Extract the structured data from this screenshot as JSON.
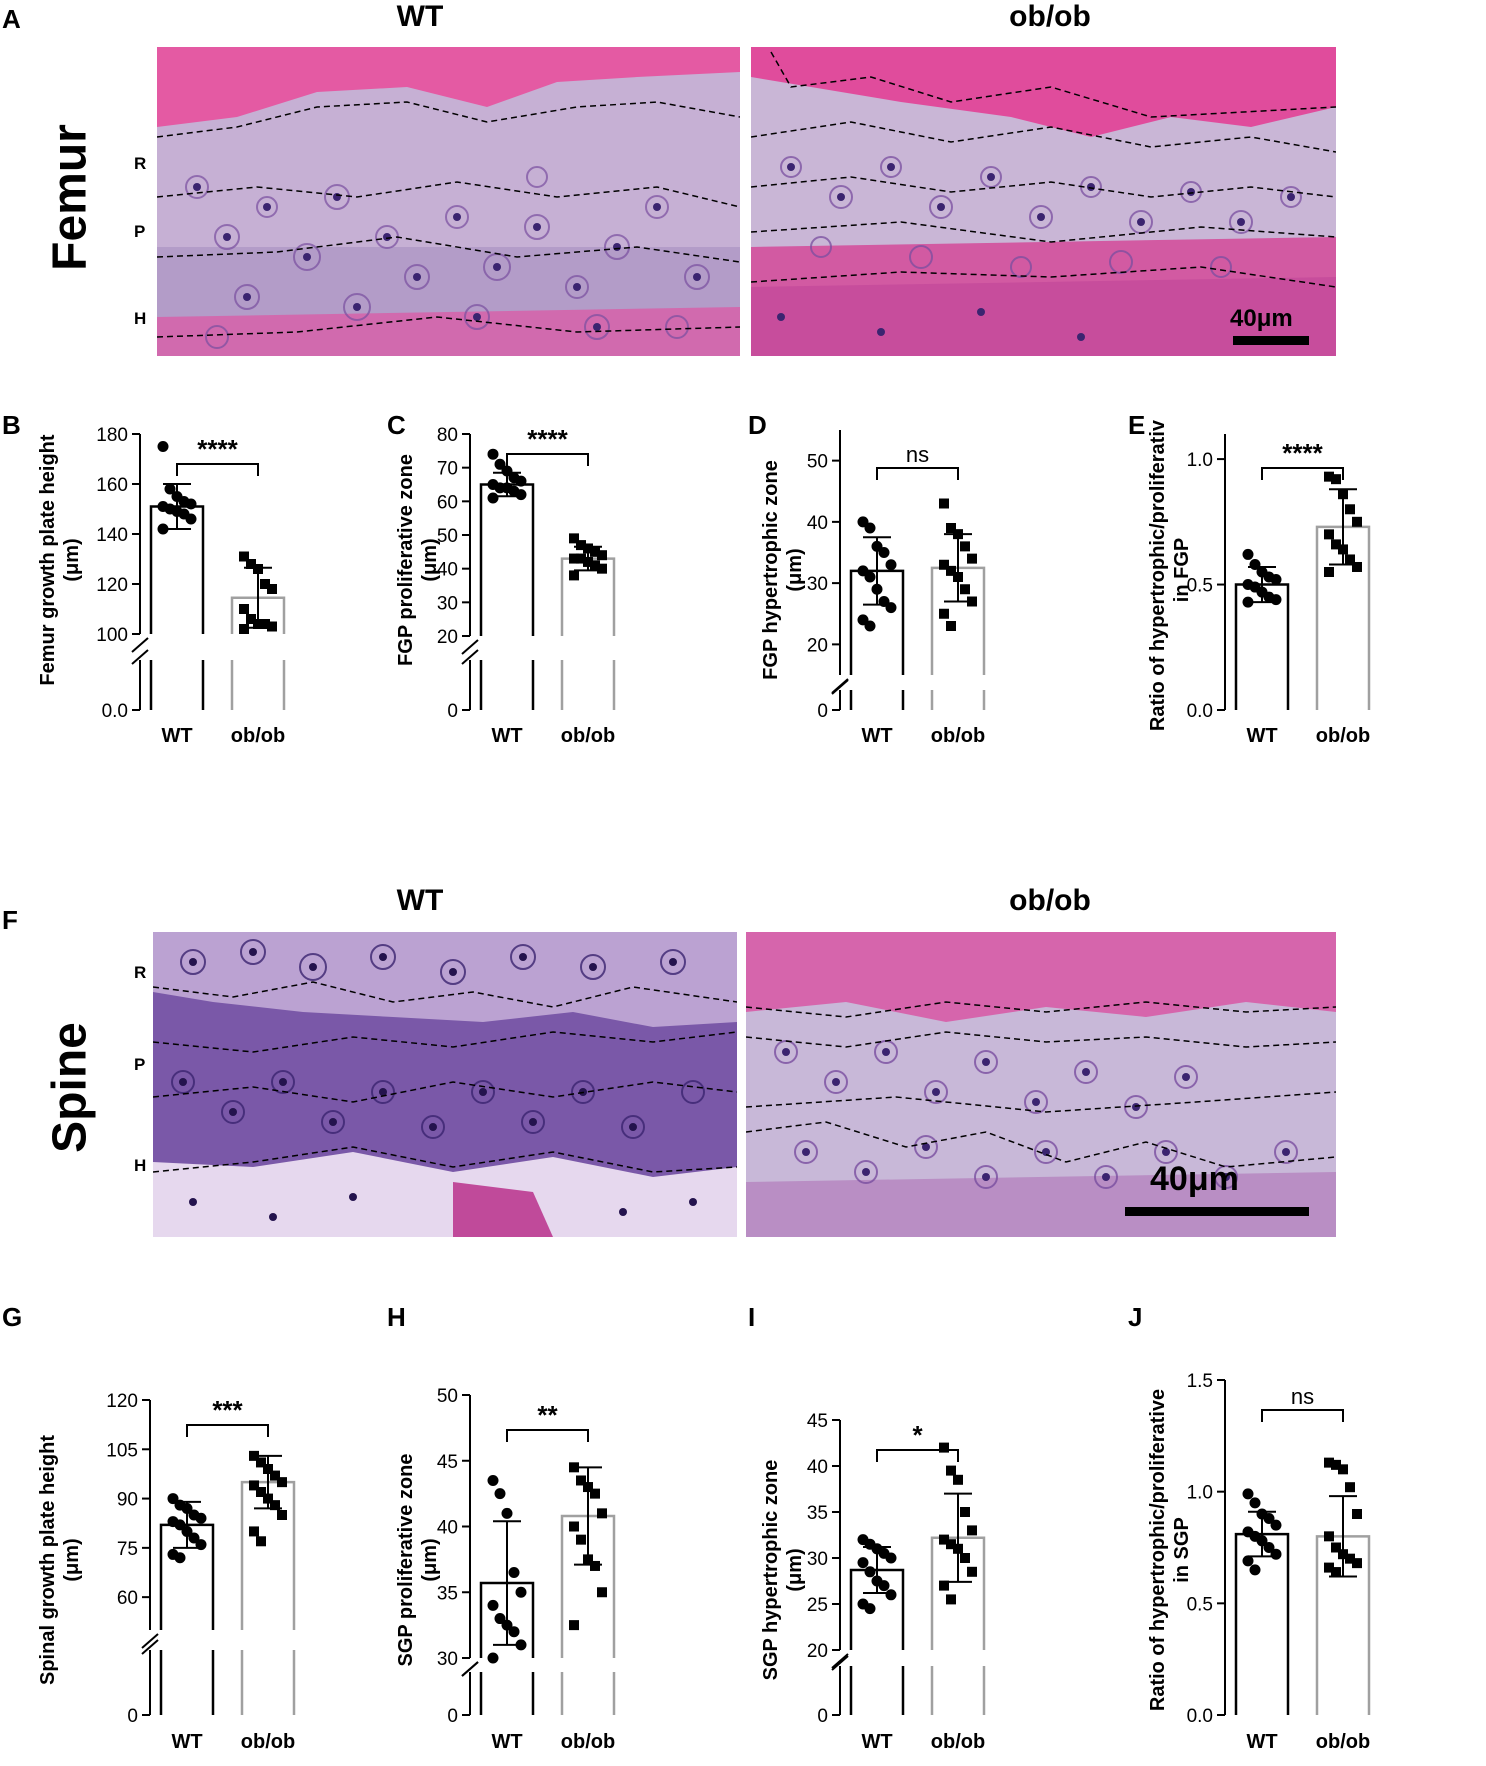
{
  "panel_letters": [
    "A",
    "B",
    "C",
    "D",
    "E",
    "F",
    "G",
    "H",
    "I",
    "J"
  ],
  "panel_a": {
    "col_titles": [
      "WT",
      "ob/ob"
    ],
    "row_title": "Femur",
    "zones": [
      "R",
      "P",
      "H"
    ],
    "scale_label": "40μm"
  },
  "panel_f": {
    "col_titles": [
      "WT",
      "ob/ob"
    ],
    "row_title": "Spine",
    "zones": [
      "R",
      "P",
      "H"
    ],
    "scale_label": "40μm"
  },
  "colors": {
    "tissue_pink": "#e0489a",
    "cartilage_lilac": "#c9b3d6",
    "cartilage_dark": "#8a64b0",
    "nucleus": "#3b2470",
    "wt_bar": "#000000",
    "obob_bar": "#a0a0a0"
  },
  "chart_data": [
    {
      "id": "B",
      "type": "bar",
      "ylabel": "Femur growth plate height\n(μm)",
      "categories": [
        "WT",
        "ob/ob"
      ],
      "values": [
        151,
        114.5
      ],
      "errors": [
        9,
        12
      ],
      "ylim": [
        0,
        180
      ],
      "break": [
        100,
        180
      ],
      "ticks_upper": [
        "100",
        "120",
        "140",
        "160",
        "180"
      ],
      "ticks_lower": [
        "0.0"
      ],
      "tick_values_upper": [
        100,
        120,
        140,
        160,
        180
      ],
      "significance": "****",
      "points": [
        [
          175,
          158,
          155,
          153,
          152,
          151,
          150,
          149,
          148,
          146,
          142
        ],
        [
          131,
          128,
          126,
          120,
          118,
          110,
          106,
          104,
          104,
          103,
          102
        ]
      ]
    },
    {
      "id": "C",
      "type": "bar",
      "ylabel": "FGP proliferative zone\n(μm)",
      "categories": [
        "WT",
        "ob/ob"
      ],
      "values": [
        65,
        43
      ],
      "errors": [
        3.5,
        3.5
      ],
      "ylim": [
        0,
        80
      ],
      "break": [
        20,
        80
      ],
      "ticks_upper": [
        "20",
        "30",
        "40",
        "50",
        "60",
        "70",
        "80"
      ],
      "ticks_lower": [
        "0"
      ],
      "tick_values_upper": [
        20,
        30,
        40,
        50,
        60,
        70,
        80
      ],
      "significance": "****",
      "points": [
        [
          74,
          71,
          69,
          67,
          66,
          65,
          64,
          64,
          63,
          62,
          61
        ],
        [
          49,
          47,
          46,
          45,
          44,
          43,
          43,
          42,
          41,
          40,
          38
        ]
      ]
    },
    {
      "id": "D",
      "type": "bar",
      "ylabel": "FGP hypertrophic zone\n(μm)",
      "categories": [
        "WT",
        "ob/ob"
      ],
      "values": [
        32,
        32.5
      ],
      "errors": [
        5.5,
        5.5
      ],
      "ylim": [
        0,
        55
      ],
      "break": [
        15,
        55
      ],
      "ticks_upper": [
        "20",
        "30",
        "40",
        "50"
      ],
      "ticks_lower": [
        "0"
      ],
      "tick_values_upper": [
        20,
        30,
        40,
        50
      ],
      "significance": "ns",
      "points": [
        [
          40,
          39,
          36,
          35,
          33,
          32,
          31,
          29,
          27,
          26,
          24,
          23
        ],
        [
          43,
          39,
          38,
          36,
          34,
          33,
          32,
          31,
          29,
          27,
          25,
          23
        ]
      ]
    },
    {
      "id": "E",
      "type": "bar",
      "ylabel": "Ratio of hypertrophic/proliferative\nin FGP",
      "categories": [
        "WT",
        "ob/ob"
      ],
      "values": [
        0.5,
        0.73
      ],
      "errors": [
        0.07,
        0.15
      ],
      "ylim": [
        0,
        1.1
      ],
      "ticks": [
        "0.0",
        "0.5",
        "1.0"
      ],
      "tick_values": [
        0,
        0.5,
        1.0
      ],
      "significance": "****",
      "points": [
        [
          0.62,
          0.58,
          0.55,
          0.53,
          0.52,
          0.5,
          0.49,
          0.47,
          0.45,
          0.44,
          0.43
        ],
        [
          0.93,
          0.92,
          0.86,
          0.8,
          0.75,
          0.7,
          0.66,
          0.64,
          0.6,
          0.57,
          0.55
        ]
      ]
    },
    {
      "id": "G",
      "type": "bar",
      "ylabel": "Spinal growth plate height\n(μm)",
      "categories": [
        "WT",
        "ob/ob"
      ],
      "values": [
        82,
        95
      ],
      "errors": [
        7,
        8
      ],
      "ylim": [
        0,
        120
      ],
      "break": [
        50,
        120
      ],
      "ticks_upper": [
        "60",
        "75",
        "90",
        "105",
        "120"
      ],
      "ticks_lower": [
        "0"
      ],
      "tick_values_upper": [
        60,
        75,
        90,
        105,
        120
      ],
      "significance": "***",
      "points": [
        [
          90,
          88,
          87,
          85,
          84,
          83,
          82,
          80,
          78,
          76,
          73,
          72
        ],
        [
          103,
          101,
          99,
          97,
          95,
          94,
          92,
          90,
          88,
          85,
          80,
          77
        ]
      ]
    },
    {
      "id": "H",
      "type": "bar",
      "ylabel": "SGP proliferative zone\n(μm)",
      "categories": [
        "WT",
        "ob/ob"
      ],
      "values": [
        35.7,
        40.8
      ],
      "errors": [
        4.7,
        3.7
      ],
      "ylim": [
        0,
        50
      ],
      "break": [
        30,
        50
      ],
      "ticks_upper": [
        "30",
        "35",
        "40",
        "45",
        "50"
      ],
      "ticks_lower": [
        "0"
      ],
      "tick_values_upper": [
        30,
        35,
        40,
        45,
        50
      ],
      "significance": "**",
      "points": [
        [
          43.5,
          42.5,
          41,
          36.5,
          35,
          34,
          33,
          32.5,
          32,
          31,
          30
        ],
        [
          44.5,
          43.5,
          43,
          42.5,
          41,
          40,
          39,
          37.5,
          37,
          35,
          32.5
        ]
      ]
    },
    {
      "id": "I",
      "type": "bar",
      "ylabel": "SGP hypertrophic zone\n(μm)",
      "categories": [
        "WT",
        "ob/ob"
      ],
      "values": [
        28.7,
        32.2
      ],
      "errors": [
        2.5,
        4.8
      ],
      "ylim": [
        0,
        45
      ],
      "break": [
        20,
        45
      ],
      "ticks_upper": [
        "20",
        "25",
        "30",
        "35",
        "40",
        "45"
      ],
      "ticks_lower": [
        "0"
      ],
      "tick_values_upper": [
        20,
        25,
        30,
        35,
        40,
        45
      ],
      "significance": "*",
      "points": [
        [
          32,
          31.5,
          31,
          30.5,
          30,
          29.5,
          28.5,
          27.5,
          27,
          26,
          25,
          24.5
        ],
        [
          42,
          39.5,
          38.5,
          35,
          33,
          32,
          31.5,
          31,
          30,
          28.5,
          27,
          25.5
        ]
      ]
    },
    {
      "id": "J",
      "type": "bar",
      "ylabel": "Ratio of hypertrophic/proliferative\nin SGP",
      "categories": [
        "WT",
        "ob/ob"
      ],
      "values": [
        0.81,
        0.8
      ],
      "errors": [
        0.1,
        0.18
      ],
      "ylim": [
        0,
        1.5
      ],
      "ticks": [
        "0.0",
        "0.5",
        "1.0",
        "1.5"
      ],
      "tick_values": [
        0,
        0.5,
        1.0,
        1.5
      ],
      "significance": "ns",
      "points": [
        [
          0.99,
          0.95,
          0.9,
          0.88,
          0.85,
          0.82,
          0.8,
          0.78,
          0.75,
          0.72,
          0.69,
          0.65
        ],
        [
          1.13,
          1.12,
          1.1,
          1.02,
          0.9,
          0.8,
          0.75,
          0.72,
          0.7,
          0.68,
          0.66,
          0.64
        ]
      ]
    }
  ]
}
